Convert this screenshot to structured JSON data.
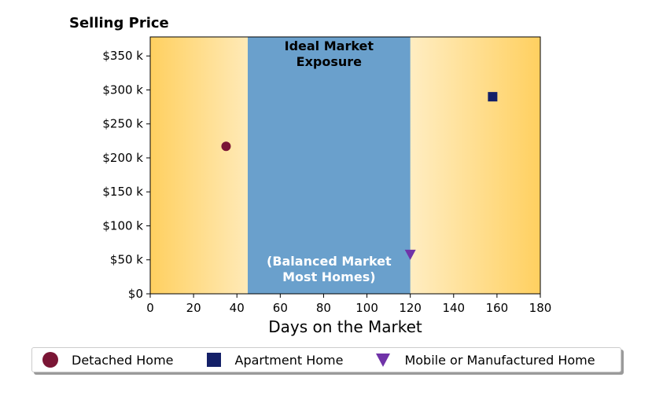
{
  "chart_data": {
    "type": "scatter",
    "title": "Selling Price",
    "xlabel": "Days on the Market",
    "ylabel": "",
    "xlim": [
      0,
      180
    ],
    "ylim": [
      0,
      378
    ],
    "x_ticks": [
      0,
      20,
      40,
      60,
      80,
      100,
      120,
      140,
      160,
      180
    ],
    "x_tick_labels": [
      "0",
      "20",
      "40",
      "60",
      "80",
      "100",
      "120",
      "140",
      "160",
      "180"
    ],
    "y_ticks": [
      0,
      50,
      100,
      150,
      200,
      250,
      300,
      350
    ],
    "y_tick_labels": [
      "$0",
      "$50 k",
      "$100 k",
      "$150 k",
      "$200 k",
      "$250 k",
      "$300 k",
      "$350 k"
    ],
    "grid": false,
    "band": {
      "x_range": [
        45,
        120
      ],
      "color": "#6aa0cc",
      "top_text": [
        "Ideal Market",
        "Exposure"
      ],
      "bottom_text": [
        "(Balanced Market",
        "Most Homes)"
      ]
    },
    "background_gradient": {
      "edge_color": "#ffd060",
      "center_color": "#ffffff"
    },
    "series": [
      {
        "name": "Detached Home",
        "marker": "circle",
        "color": "#7a1535",
        "points": [
          {
            "x": 35,
            "y": 217
          }
        ]
      },
      {
        "name": "Apartment Home",
        "marker": "square",
        "color": "#142068",
        "points": [
          {
            "x": 158,
            "y": 290
          }
        ]
      },
      {
        "name": "Mobile or Manufactured Home",
        "marker": "triangle-down",
        "color": "#7033a8",
        "points": [
          {
            "x": 120,
            "y": 58
          }
        ]
      }
    ],
    "legend_position": "bottom"
  },
  "legend": {
    "items": [
      {
        "label": "Detached Home",
        "marker": "circle",
        "color": "#7a1535"
      },
      {
        "label": "Apartment Home",
        "marker": "square",
        "color": "#142068"
      },
      {
        "label": "Mobile or Manufactured Home",
        "marker": "triangle-down",
        "color": "#7033a8"
      }
    ]
  }
}
